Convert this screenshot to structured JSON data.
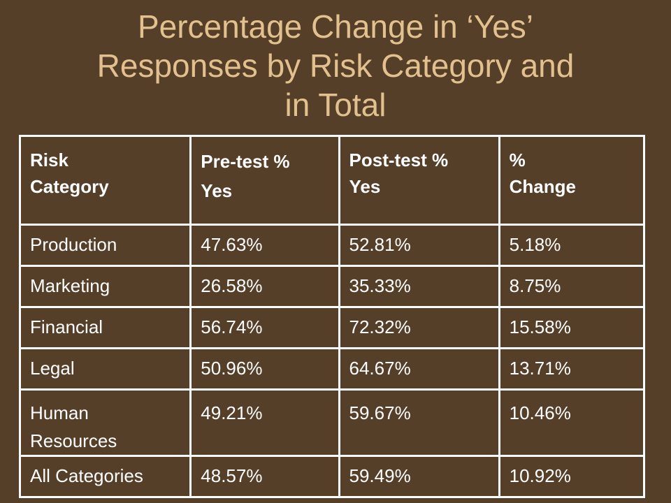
{
  "slide": {
    "title_line1": "Percentage Change in ‘Yes’",
    "title_line2": "Responses by Risk Category and",
    "title_line3": "in Total"
  },
  "colors": {
    "background": "#563f28",
    "title": "#e2c18f",
    "table_text": "#ffffff",
    "table_border": "#ffffff"
  },
  "chart_data": {
    "type": "table",
    "title": "Percentage Change in ‘Yes’ Responses by Risk Category and in Total",
    "columns": [
      "Risk Category",
      "Pre-test % Yes",
      "Post-test % Yes",
      "% Change"
    ],
    "header_lines": [
      [
        "Risk",
        "Category"
      ],
      [
        "Pre-test %",
        "Yes"
      ],
      [
        "Post-test %",
        "Yes"
      ],
      [
        "%",
        "Change"
      ]
    ],
    "rows": [
      {
        "category": [
          "Production"
        ],
        "pre": "47.63%",
        "post": "52.81%",
        "change": "5.18%"
      },
      {
        "category": [
          "Marketing"
        ],
        "pre": "26.58%",
        "post": "35.33%",
        "change": "8.75%"
      },
      {
        "category": [
          "Financial"
        ],
        "pre": "56.74%",
        "post": "72.32%",
        "change": "15.58%"
      },
      {
        "category": [
          "Legal"
        ],
        "pre": "50.96%",
        "post": "64.67%",
        "change": "13.71%"
      },
      {
        "category": [
          "Human",
          "Resources"
        ],
        "pre": "49.21%",
        "post": "59.67%",
        "change": "10.46%"
      },
      {
        "category": [
          "All Categories"
        ],
        "pre": "48.57%",
        "post": "59.49%",
        "change": "10.92%"
      }
    ]
  }
}
